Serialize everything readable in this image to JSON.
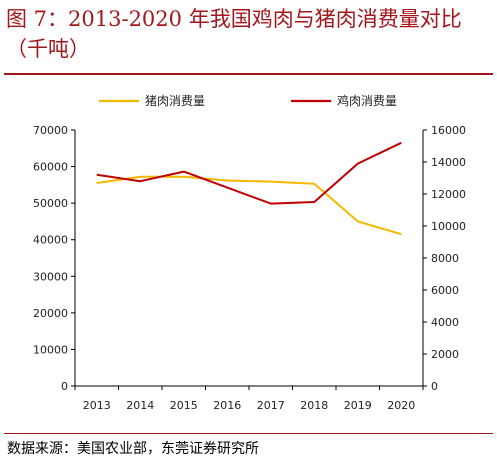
{
  "title": "图 7：2013-2020 年我国鸡肉与猪肉消费量对比（千吨）",
  "source": "数据来源：美国农业部，东莞证券研究所",
  "colors": {
    "accent": "#a3171c",
    "pork": "#f5b800",
    "chicken": "#c00000"
  },
  "chart_data": {
    "type": "line",
    "categories": [
      "2013",
      "2014",
      "2015",
      "2016",
      "2017",
      "2018",
      "2019",
      "2020"
    ],
    "series": [
      {
        "name": "猪肉消费量",
        "axis": "left",
        "color": "#f5b800",
        "values": [
          55500,
          57200,
          57200,
          56200,
          55900,
          55300,
          45000,
          41500
        ]
      },
      {
        "name": "鸡肉消费量",
        "axis": "right",
        "color": "#c00000",
        "values": [
          13200,
          12800,
          13400,
          12400,
          11400,
          11500,
          13900,
          15200
        ]
      }
    ],
    "ylim_left": [
      0,
      70000
    ],
    "ylim_right": [
      0,
      16000
    ],
    "yticks_left": [
      "0",
      "10000",
      "20000",
      "30000",
      "40000",
      "50000",
      "60000",
      "70000"
    ],
    "yticks_right": [
      "0",
      "2000",
      "4000",
      "6000",
      "8000",
      "10000",
      "12000",
      "14000",
      "16000"
    ],
    "legend_position": "top",
    "grid": false
  }
}
